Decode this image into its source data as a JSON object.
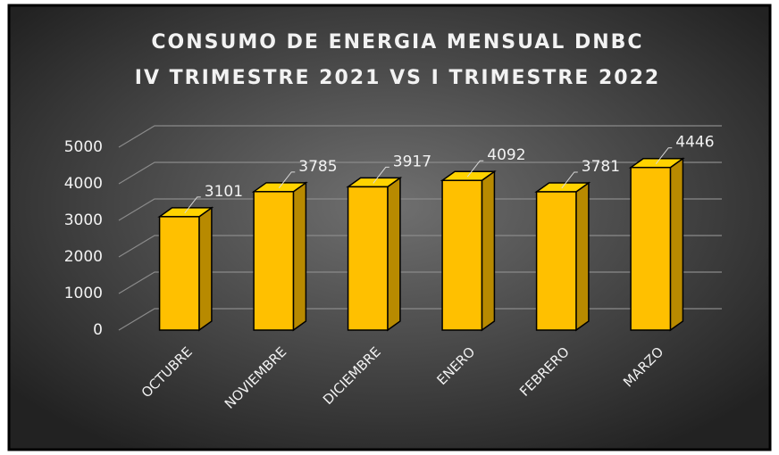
{
  "chart_data": {
    "type": "bar3d",
    "title": "CONSUMO DE ENERGIA MENSUAL DNBC",
    "subtitle": "IV TRIMESTRE 2021 VS I TRIMESTRE 2022",
    "categories": [
      "OCTUBRE",
      "NOVIEMBRE",
      "DICIEMBRE",
      "ENERO",
      "FEBRERO",
      "MARZO"
    ],
    "values": [
      3101,
      3785,
      3917,
      4092,
      3781,
      4446
    ],
    "color": "#ffc000",
    "ylim": [
      0,
      5000
    ],
    "yticks": [
      0,
      1000,
      2000,
      3000,
      4000,
      5000
    ],
    "grid": true
  }
}
